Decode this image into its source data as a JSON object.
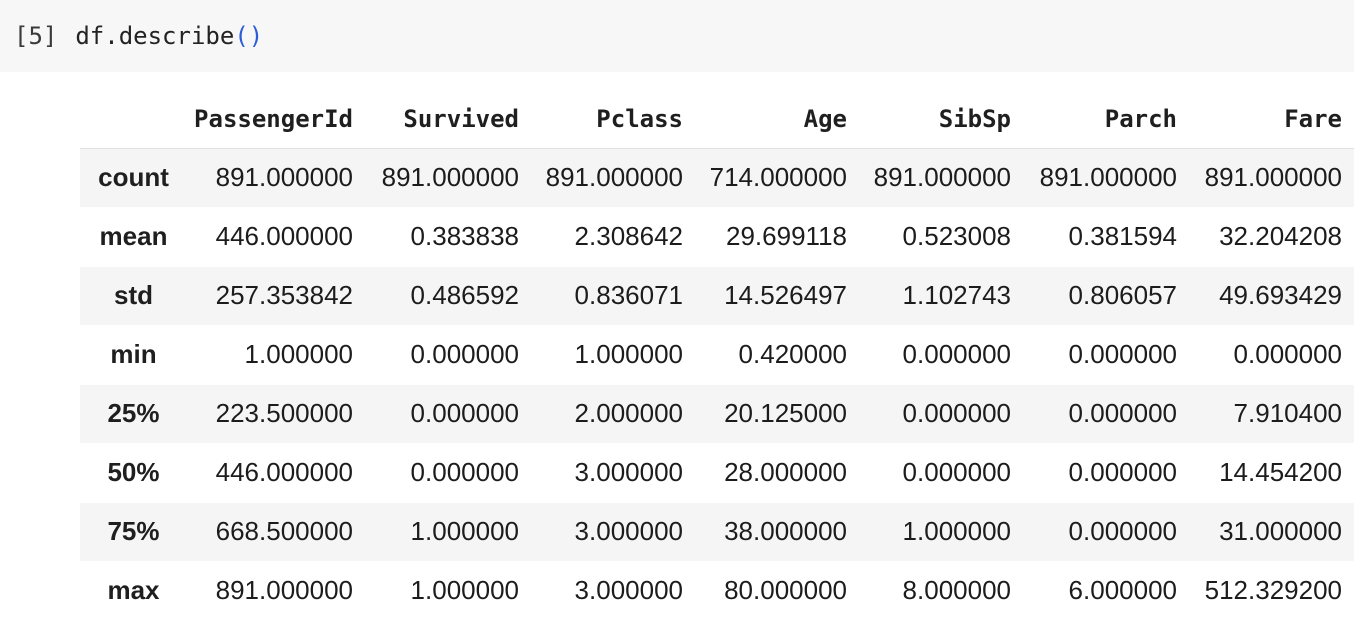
{
  "cell": {
    "execution_count": "[5]",
    "code_main": "df.describe",
    "code_parens": "()"
  },
  "table": {
    "index_header": "",
    "columns": [
      "PassengerId",
      "Survived",
      "Pclass",
      "Age",
      "SibSp",
      "Parch",
      "Fare"
    ],
    "rows": [
      {
        "label": "count",
        "values": [
          "891.000000",
          "891.000000",
          "891.000000",
          "714.000000",
          "891.000000",
          "891.000000",
          "891.000000"
        ]
      },
      {
        "label": "mean",
        "values": [
          "446.000000",
          "0.383838",
          "2.308642",
          "29.699118",
          "0.523008",
          "0.381594",
          "32.204208"
        ]
      },
      {
        "label": "std",
        "values": [
          "257.353842",
          "0.486592",
          "0.836071",
          "14.526497",
          "1.102743",
          "0.806057",
          "49.693429"
        ]
      },
      {
        "label": "min",
        "values": [
          "1.000000",
          "0.000000",
          "1.000000",
          "0.420000",
          "0.000000",
          "0.000000",
          "0.000000"
        ]
      },
      {
        "label": "25%",
        "values": [
          "223.500000",
          "0.000000",
          "2.000000",
          "20.125000",
          "0.000000",
          "0.000000",
          "7.910400"
        ]
      },
      {
        "label": "50%",
        "values": [
          "446.000000",
          "0.000000",
          "3.000000",
          "28.000000",
          "0.000000",
          "0.000000",
          "14.454200"
        ]
      },
      {
        "label": "75%",
        "values": [
          "668.500000",
          "1.000000",
          "3.000000",
          "38.000000",
          "1.000000",
          "0.000000",
          "31.000000"
        ]
      },
      {
        "label": "max",
        "values": [
          "891.000000",
          "1.000000",
          "3.000000",
          "80.000000",
          "8.000000",
          "6.000000",
          "512.329200"
        ]
      }
    ]
  },
  "colors": {
    "code_cell_background": "#f7f7f7",
    "row_stripe": "#f5f5f5",
    "header_border": "#e1e1e1",
    "paren_blue": "#2e5bd8",
    "text": "#1f1f1f"
  }
}
